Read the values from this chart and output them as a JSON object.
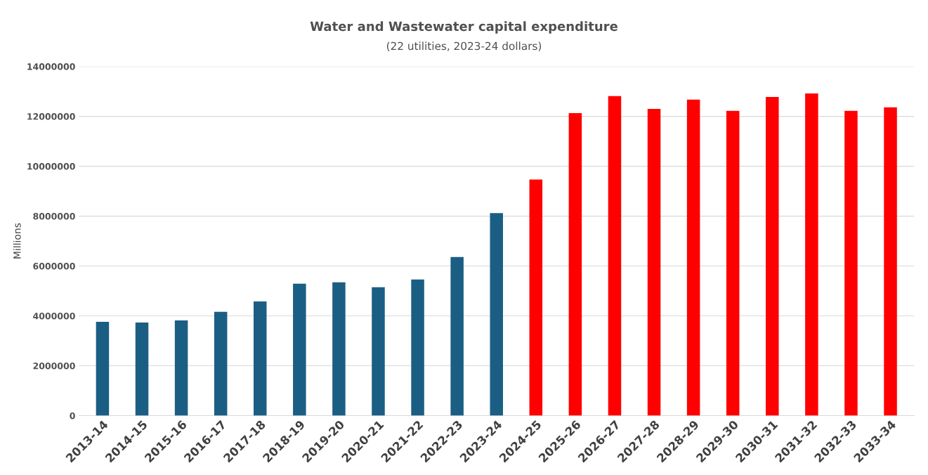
{
  "chart_data": {
    "type": "bar",
    "title": "Water and Wastewater capital expenditure",
    "subtitle": "(22 utilities, 2023-24 dollars)",
    "ylabel": "Millions",
    "categories": [
      "2013-14",
      "2014-15",
      "2015-16",
      "2016-17",
      "2017-18",
      "2018-19",
      "2019-20",
      "2020-21",
      "2021-22",
      "2022-23",
      "2023-24",
      "2024-25",
      "2025-26",
      "2026-27",
      "2027-28",
      "2028-29",
      "2029-30",
      "2030-31",
      "2031-32",
      "2032-33",
      "2033-34"
    ],
    "values": [
      3760000,
      3730000,
      3820000,
      4160000,
      4580000,
      5290000,
      5350000,
      5150000,
      5460000,
      6360000,
      8120000,
      9470000,
      12130000,
      12810000,
      12300000,
      12670000,
      12220000,
      12780000,
      12920000,
      12220000,
      12360000
    ],
    "colors": [
      "#1b5e84",
      "#1b5e84",
      "#1b5e84",
      "#1b5e84",
      "#1b5e84",
      "#1b5e84",
      "#1b5e84",
      "#1b5e84",
      "#1b5e84",
      "#1b5e84",
      "#1b5e84",
      "#ff0000",
      "#ff0000",
      "#ff0000",
      "#ff0000",
      "#ff0000",
      "#ff0000",
      "#ff0000",
      "#ff0000",
      "#ff0000",
      "#ff0000"
    ],
    "ylim": [
      0,
      14000000
    ],
    "yticks": [
      0,
      2000000,
      4000000,
      6000000,
      8000000,
      10000000,
      12000000,
      14000000
    ],
    "grid": "y"
  }
}
